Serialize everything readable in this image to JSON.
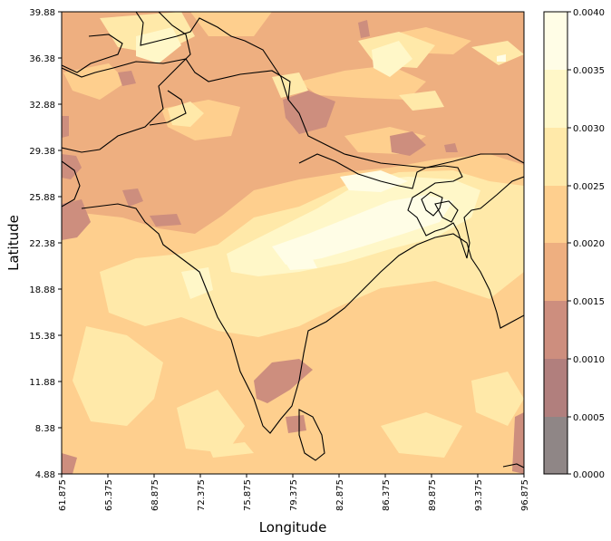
{
  "figure": {
    "xlabel": "Longitude",
    "ylabel": "Latitude",
    "x_ticks": [
      "61.875",
      "65.375",
      "68.875",
      "72.375",
      "75.875",
      "79.375",
      "82.875",
      "86.375",
      "89.875",
      "93.375",
      "96.875"
    ],
    "y_ticks": [
      "39.88",
      "36.38",
      "32.88",
      "29.38",
      "25.88",
      "22.38",
      "18.88",
      "15.38",
      "11.88",
      "8.38",
      "4.88"
    ],
    "colorbar_ticks": [
      "0.0040",
      "0.0035",
      "0.0030",
      "0.0025",
      "0.0020",
      "0.0015",
      "0.0010",
      "0.0005",
      "0.0000"
    ]
  },
  "chart_data": {
    "type": "heatmap",
    "subtype": "filled-contour map",
    "xlabel": "Longitude",
    "ylabel": "Latitude",
    "xlim": [
      61.875,
      96.875
    ],
    "ylim": [
      4.88,
      39.88
    ],
    "colorbar_range": [
      0.0,
      0.004
    ],
    "contour_levels": [
      0.0,
      0.0005,
      0.001,
      0.0015,
      0.002,
      0.0025,
      0.003,
      0.0035,
      0.004
    ],
    "level_colors": [
      "#8f8686",
      "#b17f7d",
      "#cd8e7e",
      "#eeaf80",
      "#fecf8e",
      "#ffe9a9",
      "#fff7c8",
      "#fffde6"
    ],
    "region": "Indian subcontinent"
  }
}
